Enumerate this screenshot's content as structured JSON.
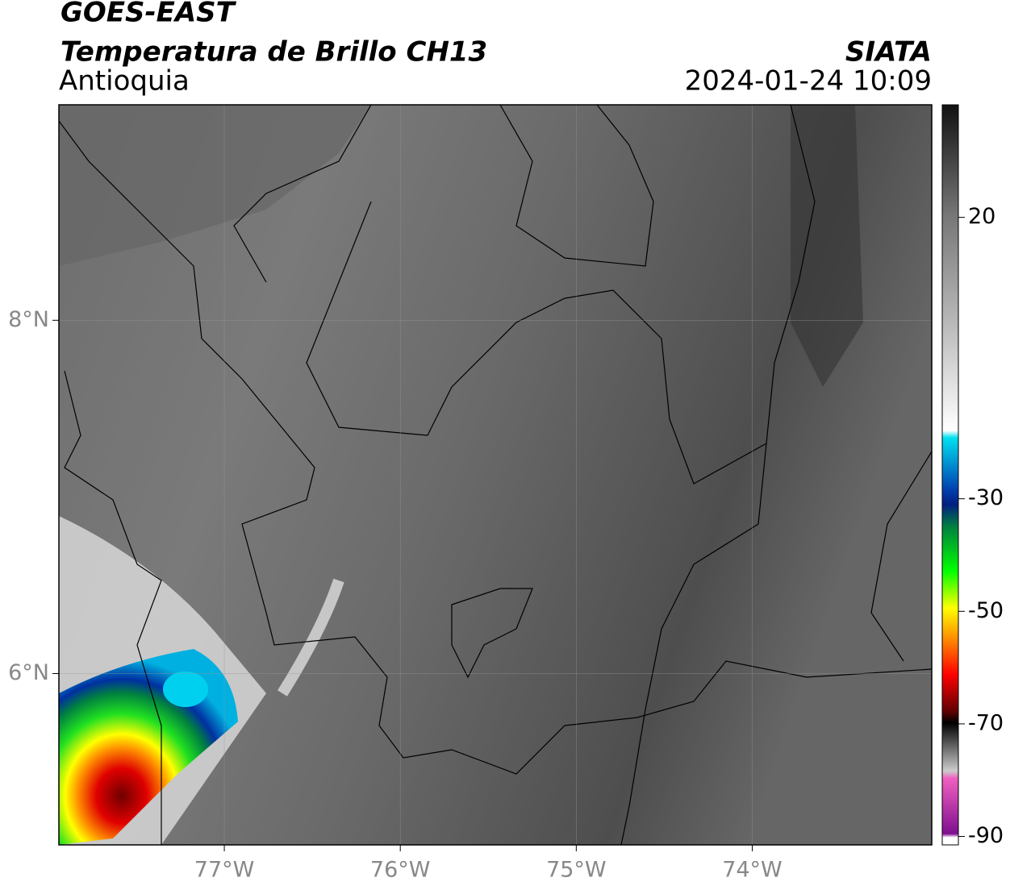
{
  "header": {
    "title": "GOES-EAST",
    "subtitle": "Temperatura de Brillo CH13",
    "region": "Antioquia",
    "source": "SIATA",
    "datetime": "2024-01-24 10:09"
  },
  "map": {
    "xlim": [
      -77.94,
      -72.98
    ],
    "ylim": [
      5.03,
      9.22
    ],
    "lon_ticks": [
      {
        "value": -77,
        "label": "77°W"
      },
      {
        "value": -76,
        "label": "76°W"
      },
      {
        "value": -75,
        "label": "75°W"
      },
      {
        "value": -74,
        "label": "74°W"
      }
    ],
    "lat_ticks": [
      {
        "value": 8,
        "label": "8°N"
      },
      {
        "value": 6,
        "label": "6°N"
      }
    ]
  },
  "colorbar": {
    "clim": [
      -91.5,
      40
    ],
    "ticks": [
      20,
      -30,
      -50,
      -70,
      -90
    ]
  }
}
